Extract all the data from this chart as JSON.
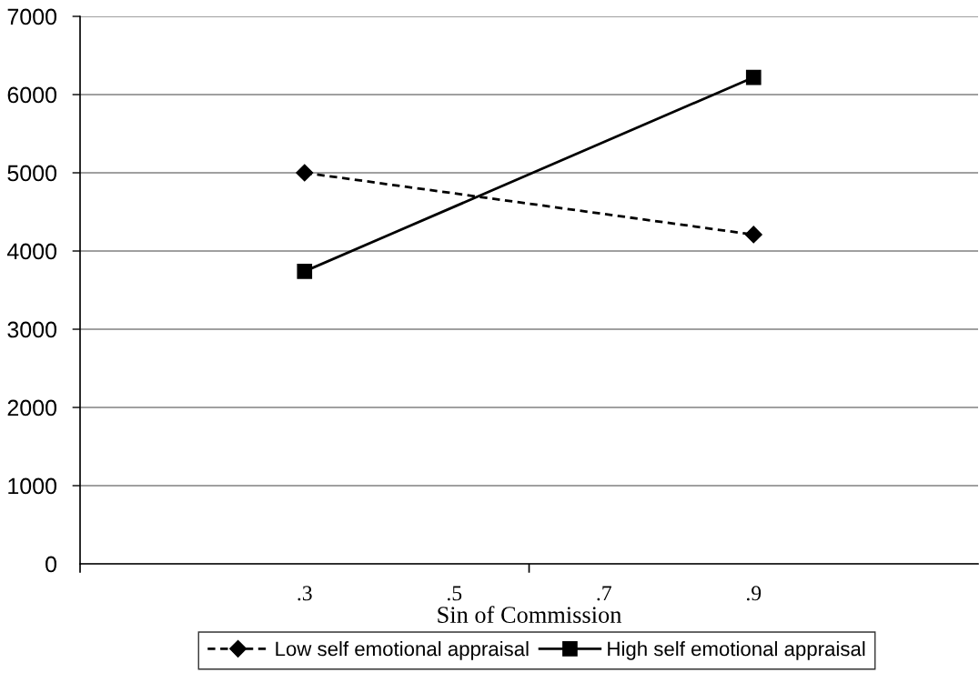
{
  "chart_data": {
    "type": "line",
    "xlabel": "Sin of Commission",
    "x": [
      0.3,
      0.9
    ],
    "xlim": [
      0,
      1.2
    ],
    "xticks": [
      {
        "value": 0,
        "label": null
      },
      {
        "value": 0.3,
        "label": ".3"
      },
      {
        "value": 0.5,
        "label": ".5"
      },
      {
        "value": 0.6,
        "label": null
      },
      {
        "value": 0.7,
        "label": ".7"
      },
      {
        "value": 0.9,
        "label": ".9"
      }
    ],
    "ylim": [
      0,
      7000
    ],
    "yticks": [
      0,
      1000,
      2000,
      3000,
      4000,
      5000,
      6000,
      7000
    ],
    "grid": "y",
    "legend": "bottom",
    "series": [
      {
        "name": "Low self emotional appraisal",
        "color": "#000000",
        "values": [
          5000,
          4210
        ],
        "marker": "diamond",
        "line_style": "dashed"
      },
      {
        "name": "High self emotional appraisal",
        "color": "#000000",
        "values": [
          3740,
          6220
        ],
        "marker": "square",
        "line_style": "solid"
      }
    ]
  }
}
